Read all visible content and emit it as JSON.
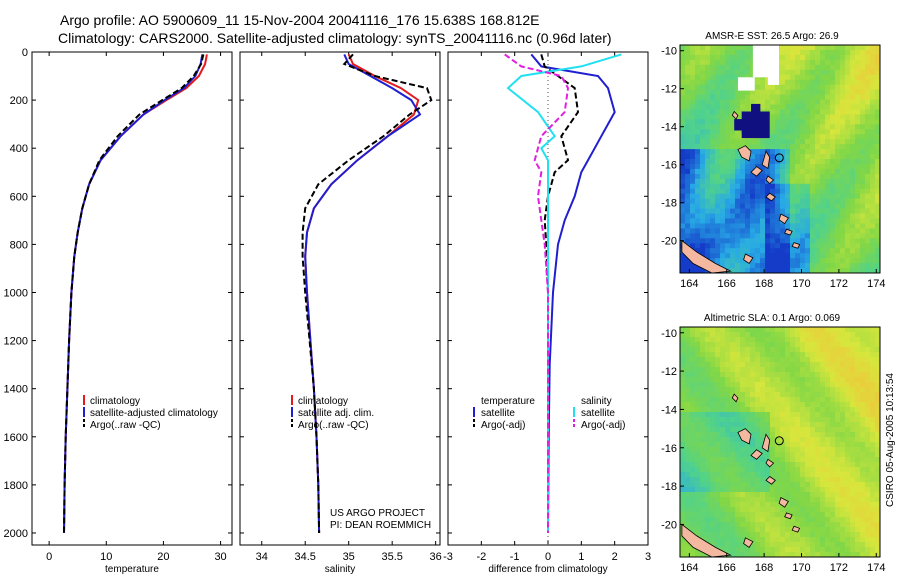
{
  "header": {
    "line1": "Argo profile: AO 5900609_11 15-Nov-2004 20041116_176 15.638S 168.812E",
    "line2": "Climatology: CARS2000. Satellite-adjusted climatology: synTS_20041116.nc (0.96d later)"
  },
  "colors": {
    "climatology": "#e41a1c",
    "satellite": "#1f1fd0",
    "argo": "#000000",
    "satellite_salinity": "#22e0f0",
    "argo_salinity_diff": "#e020e0",
    "land": "#f4b8a0"
  },
  "chart_data": [
    {
      "type": "line",
      "id": "temperature",
      "xlabel": "temperature",
      "xlim": [
        -3,
        32
      ],
      "ylim": [
        2050,
        0
      ],
      "xticks": [
        0,
        10,
        20,
        30
      ],
      "yticks": [
        0,
        200,
        400,
        600,
        800,
        1000,
        1200,
        1400,
        1600,
        1800,
        2000
      ],
      "legend": [
        "climatology",
        "satellite-adjusted climatology",
        "Argo(..raw -QC)"
      ],
      "series": [
        {
          "name": "climatology",
          "style": "solid",
          "color_key": "climatology",
          "x": [
            27.6,
            27.3,
            26.2,
            24.0,
            20.5,
            16.5,
            12.5,
            9.0,
            7.0,
            5.8,
            5.0,
            4.4,
            3.9,
            3.5,
            3.2,
            2.9,
            2.7,
            2.6
          ],
          "y": [
            10,
            50,
            100,
            150,
            200,
            260,
            350,
            450,
            550,
            650,
            750,
            850,
            1000,
            1200,
            1400,
            1600,
            1800,
            2000
          ]
        },
        {
          "name": "satellite-adjusted climatology",
          "style": "solid",
          "color_key": "satellite",
          "x": [
            26.8,
            26.5,
            25.6,
            23.6,
            20.2,
            16.5,
            12.5,
            9.0,
            7.0,
            5.8,
            5.0,
            4.4,
            3.9,
            3.5,
            3.2,
            2.9,
            2.7,
            2.6
          ],
          "y": [
            10,
            50,
            100,
            150,
            200,
            260,
            350,
            450,
            550,
            650,
            750,
            850,
            1000,
            1200,
            1400,
            1600,
            1800,
            2000
          ]
        },
        {
          "name": "Argo(..raw -QC)",
          "style": "dashed",
          "color_key": "argo",
          "x": [
            27.0,
            26.6,
            25.3,
            23.2,
            19.8,
            15.8,
            12.0,
            8.8,
            7.0,
            5.8,
            5.0,
            4.4,
            3.9,
            3.5,
            3.2,
            2.9,
            2.7,
            2.6
          ],
          "y": [
            10,
            50,
            100,
            150,
            200,
            260,
            350,
            450,
            550,
            650,
            750,
            850,
            1000,
            1200,
            1400,
            1600,
            1800,
            2000
          ]
        }
      ]
    },
    {
      "type": "line",
      "id": "salinity",
      "xlabel": "salinity",
      "xlim": [
        33.75,
        36.05
      ],
      "ylim": [
        2050,
        0
      ],
      "xticks": [
        34,
        34.5,
        35,
        35.5,
        36
      ],
      "yticks": [
        0,
        200,
        400,
        600,
        800,
        1000,
        1200,
        1400,
        1600,
        1800,
        2000
      ],
      "legend": [
        "climatology",
        "satellite adj. clim.",
        "Argo(..raw -QC)"
      ],
      "annotation": [
        "US ARGO PROJECT",
        "PI: DEAN ROEMMICH"
      ],
      "series": [
        {
          "name": "climatology",
          "style": "solid",
          "color_key": "climatology",
          "x": [
            35.0,
            35.05,
            35.3,
            35.6,
            35.8,
            35.75,
            35.45,
            35.1,
            34.8,
            34.6,
            34.52,
            34.5,
            34.52,
            34.56,
            34.6,
            34.63,
            34.65,
            34.66
          ],
          "y": [
            10,
            50,
            100,
            150,
            200,
            260,
            350,
            450,
            550,
            650,
            750,
            850,
            1000,
            1200,
            1400,
            1600,
            1800,
            2000
          ]
        },
        {
          "name": "satellite adj. clim.",
          "style": "solid",
          "color_key": "satellite",
          "x": [
            34.95,
            35.0,
            35.25,
            35.5,
            35.72,
            35.82,
            35.45,
            35.1,
            34.8,
            34.6,
            34.52,
            34.5,
            34.52,
            34.56,
            34.6,
            34.63,
            34.65,
            34.66
          ],
          "y": [
            10,
            50,
            100,
            150,
            200,
            260,
            350,
            450,
            550,
            650,
            750,
            850,
            1000,
            1200,
            1400,
            1600,
            1800,
            2000
          ]
        },
        {
          "name": "Argo(..raw -QC)",
          "style": "dashed",
          "color_key": "argo",
          "x": [
            35.05,
            34.95,
            35.3,
            35.9,
            35.95,
            35.7,
            35.4,
            35.0,
            34.65,
            34.5,
            34.47,
            34.47,
            34.5,
            34.55,
            34.6,
            34.63,
            34.65,
            34.66
          ],
          "y": [
            10,
            50,
            100,
            150,
            200,
            260,
            350,
            450,
            550,
            650,
            750,
            850,
            1000,
            1200,
            1400,
            1600,
            1800,
            2000
          ]
        }
      ]
    },
    {
      "type": "line",
      "id": "difference",
      "xlabel": "difference from climatology",
      "xlim": [
        -3,
        3
      ],
      "ylim": [
        2050,
        0
      ],
      "xticks": [
        -3,
        -2,
        -1,
        0,
        1,
        2,
        3
      ],
      "yticks": [
        0,
        200,
        400,
        600,
        800,
        1000,
        1200,
        1400,
        1600,
        1800,
        2000
      ],
      "legend_left": [
        "temperature",
        "satellite",
        "Argo(-adj)"
      ],
      "legend_right": [
        "salinity",
        "satellite",
        "Argo(-adj)"
      ],
      "series": [
        {
          "name": "temperature satellite",
          "style": "solid",
          "color_key": "satellite",
          "x": [
            -0.5,
            -0.2,
            1.5,
            1.8,
            2.0,
            1.6,
            1.4,
            1.2,
            1.0,
            0.8,
            0.5,
            0.3,
            0.15,
            0.05,
            0.02,
            0.0
          ],
          "y": [
            10,
            60,
            100,
            150,
            250,
            350,
            400,
            450,
            500,
            600,
            700,
            800,
            1000,
            1300,
            1600,
            2000
          ]
        },
        {
          "name": "temperature Argo(-adj)",
          "style": "dashed",
          "color_key": "argo",
          "x": [
            -0.2,
            -0.1,
            0.3,
            0.8,
            0.9,
            0.4,
            0.5,
            0.6,
            0.2,
            0.0,
            -0.1,
            -0.05,
            0.0,
            0.0,
            0.0,
            0.0
          ],
          "y": [
            10,
            60,
            100,
            150,
            250,
            350,
            400,
            450,
            500,
            600,
            700,
            800,
            1000,
            1300,
            1600,
            2000
          ]
        },
        {
          "name": "salinity satellite",
          "style": "solid",
          "color_key": "satellite_salinity",
          "x": [
            2.2,
            1.0,
            -0.8,
            -1.2,
            -0.3,
            0.2,
            -0.2,
            0.0,
            0.0,
            0.0,
            0.0,
            0.0,
            0.0,
            0.0,
            0.0,
            0.0
          ],
          "y": [
            10,
            60,
            100,
            150,
            250,
            350,
            400,
            450,
            500,
            600,
            700,
            800,
            1000,
            1300,
            1600,
            2000
          ]
        },
        {
          "name": "salinity Argo(-adj)",
          "style": "dashed",
          "color_key": "argo_salinity_diff",
          "x": [
            -1.3,
            -0.8,
            0.4,
            0.6,
            0.5,
            -0.2,
            -0.3,
            -0.4,
            -0.2,
            -0.3,
            -0.2,
            -0.1,
            0.0,
            0.0,
            0.0,
            0.0
          ],
          "y": [
            10,
            60,
            100,
            150,
            250,
            350,
            400,
            450,
            500,
            600,
            700,
            800,
            1000,
            1300,
            1600,
            2000
          ]
        }
      ]
    },
    {
      "type": "heatmap",
      "id": "sst_map",
      "title": "AMSR-E SST: 26.5 Argo: 26.9",
      "xlim": [
        163.5,
        174.2
      ],
      "ylim": [
        -21.7,
        -9.7
      ],
      "xticks": [
        164,
        166,
        168,
        170,
        172,
        174
      ],
      "yticks": [
        -10,
        -12,
        -14,
        -16,
        -18,
        -20
      ]
    },
    {
      "type": "heatmap",
      "id": "sla_map",
      "title": "Altimetric SLA: 0.1 Argo: 0.069",
      "xlim": [
        163.5,
        174.2
      ],
      "ylim": [
        -21.7,
        -9.7
      ],
      "xticks": [
        164,
        166,
        168,
        170,
        172,
        174
      ],
      "yticks": [
        -10,
        -12,
        -14,
        -16,
        -18,
        -20
      ]
    }
  ],
  "credit": "CSIRO 05-Aug-2005 10:13:54"
}
